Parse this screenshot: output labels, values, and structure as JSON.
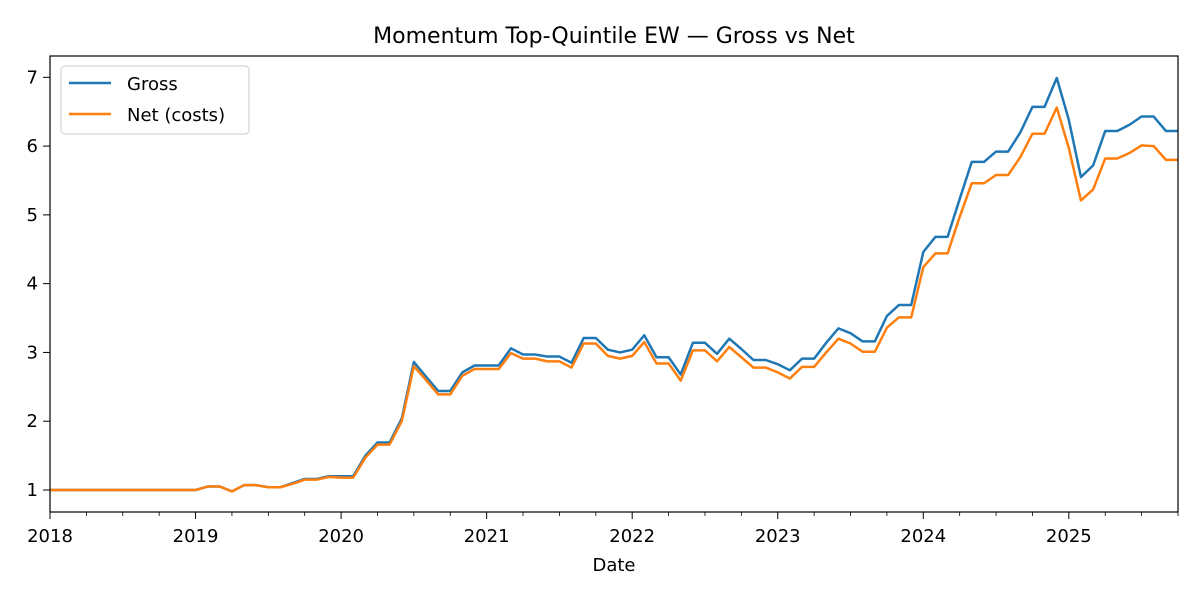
{
  "chart_data": {
    "type": "line",
    "title": "Momentum Top-Quintile EW — Gross vs Net",
    "xlabel": "Date",
    "ylabel": "",
    "xlim": [
      2018.0,
      2025.75
    ],
    "ylim": [
      0.68,
      7.31
    ],
    "x_ticks": [
      "2018",
      "2019",
      "2020",
      "2021",
      "2022",
      "2023",
      "2024",
      "2025"
    ],
    "y_ticks": [
      "1",
      "2",
      "3",
      "4",
      "5",
      "6",
      "7"
    ],
    "grid": false,
    "legend_position": "top-left",
    "colors": {
      "gross": "#1f77b4",
      "net": "#ff7f0e"
    },
    "series": [
      {
        "name": "Gross",
        "x": [
          2018.0,
          2018.083,
          2018.167,
          2018.25,
          2018.333,
          2018.417,
          2018.5,
          2018.583,
          2018.667,
          2018.75,
          2018.833,
          2018.917,
          2019.0,
          2019.083,
          2019.167,
          2019.25,
          2019.333,
          2019.417,
          2019.5,
          2019.583,
          2019.667,
          2019.75,
          2019.833,
          2019.917,
          2020.0,
          2020.083,
          2020.167,
          2020.25,
          2020.333,
          2020.417,
          2020.5,
          2020.583,
          2020.667,
          2020.75,
          2020.833,
          2020.917,
          2021.0,
          2021.083,
          2021.167,
          2021.25,
          2021.333,
          2021.417,
          2021.5,
          2021.583,
          2021.667,
          2021.75,
          2021.833,
          2021.917,
          2022.0,
          2022.083,
          2022.167,
          2022.25,
          2022.333,
          2022.417,
          2022.5,
          2022.583,
          2022.667,
          2022.75,
          2022.833,
          2022.917,
          2023.0,
          2023.083,
          2023.167,
          2023.25,
          2023.333,
          2023.417,
          2023.5,
          2023.583,
          2023.667,
          2023.75,
          2023.833,
          2023.917,
          2024.0,
          2024.083,
          2024.167,
          2024.25,
          2024.333,
          2024.417,
          2024.5,
          2024.583,
          2024.667,
          2024.75,
          2024.833,
          2024.917,
          2025.0,
          2025.083,
          2025.167,
          2025.25,
          2025.333,
          2025.417,
          2025.5,
          2025.583,
          2025.667,
          2025.75
        ],
        "values": [
          1.0,
          1.0,
          1.0,
          1.0,
          1.0,
          1.0,
          1.0,
          1.0,
          1.0,
          1.0,
          1.0,
          1.0,
          1.0,
          1.05,
          1.05,
          0.98,
          1.07,
          1.07,
          1.04,
          1.04,
          1.1,
          1.16,
          1.16,
          1.2,
          1.2,
          1.2,
          1.5,
          1.69,
          1.69,
          2.04,
          2.86,
          2.65,
          2.44,
          2.44,
          2.71,
          2.81,
          2.81,
          2.81,
          3.06,
          2.97,
          2.97,
          2.94,
          2.94,
          2.85,
          3.21,
          3.21,
          3.04,
          3.0,
          3.04,
          3.25,
          2.93,
          2.93,
          2.68,
          3.14,
          3.14,
          2.98,
          3.2,
          3.05,
          2.89,
          2.89,
          2.83,
          2.74,
          2.91,
          2.91,
          3.14,
          3.35,
          3.28,
          3.16,
          3.16,
          3.53,
          3.69,
          3.69,
          4.46,
          4.68,
          4.68,
          5.23,
          5.77,
          5.77,
          5.92,
          5.92,
          6.2,
          6.57,
          6.57,
          6.99,
          6.38,
          5.55,
          5.72,
          6.22,
          6.22,
          6.31,
          6.43,
          6.43,
          6.22,
          6.22
        ]
      },
      {
        "name": "Net (costs)",
        "x": [
          2018.0,
          2018.083,
          2018.167,
          2018.25,
          2018.333,
          2018.417,
          2018.5,
          2018.583,
          2018.667,
          2018.75,
          2018.833,
          2018.917,
          2019.0,
          2019.083,
          2019.167,
          2019.25,
          2019.333,
          2019.417,
          2019.5,
          2019.583,
          2019.667,
          2019.75,
          2019.833,
          2019.917,
          2020.0,
          2020.083,
          2020.167,
          2020.25,
          2020.333,
          2020.417,
          2020.5,
          2020.583,
          2020.667,
          2020.75,
          2020.833,
          2020.917,
          2021.0,
          2021.083,
          2021.167,
          2021.25,
          2021.333,
          2021.417,
          2021.5,
          2021.583,
          2021.667,
          2021.75,
          2021.833,
          2021.917,
          2022.0,
          2022.083,
          2022.167,
          2022.25,
          2022.333,
          2022.417,
          2022.5,
          2022.583,
          2022.667,
          2022.75,
          2022.833,
          2022.917,
          2023.0,
          2023.083,
          2023.167,
          2023.25,
          2023.333,
          2023.417,
          2023.5,
          2023.583,
          2023.667,
          2023.75,
          2023.833,
          2023.917,
          2024.0,
          2024.083,
          2024.167,
          2024.25,
          2024.333,
          2024.417,
          2024.5,
          2024.583,
          2024.667,
          2024.75,
          2024.833,
          2024.917,
          2025.0,
          2025.083,
          2025.167,
          2025.25,
          2025.333,
          2025.417,
          2025.5,
          2025.583,
          2025.667,
          2025.75
        ],
        "values": [
          1.0,
          1.0,
          1.0,
          1.0,
          1.0,
          1.0,
          1.0,
          1.0,
          1.0,
          1.0,
          1.0,
          1.0,
          1.0,
          1.05,
          1.05,
          0.98,
          1.07,
          1.07,
          1.04,
          1.04,
          1.09,
          1.15,
          1.15,
          1.19,
          1.18,
          1.18,
          1.47,
          1.66,
          1.66,
          2.0,
          2.8,
          2.6,
          2.39,
          2.39,
          2.66,
          2.76,
          2.76,
          2.76,
          2.99,
          2.91,
          2.91,
          2.87,
          2.87,
          2.78,
          3.13,
          3.13,
          2.95,
          2.91,
          2.95,
          3.15,
          2.84,
          2.84,
          2.59,
          3.03,
          3.03,
          2.87,
          3.08,
          2.93,
          2.78,
          2.78,
          2.71,
          2.62,
          2.79,
          2.79,
          3.0,
          3.2,
          3.13,
          3.01,
          3.01,
          3.36,
          3.51,
          3.51,
          4.24,
          4.44,
          4.44,
          4.97,
          5.46,
          5.46,
          5.58,
          5.58,
          5.84,
          6.18,
          6.18,
          6.56,
          5.97,
          5.21,
          5.37,
          5.82,
          5.82,
          5.9,
          6.01,
          6.0,
          5.8,
          5.8
        ]
      }
    ]
  }
}
